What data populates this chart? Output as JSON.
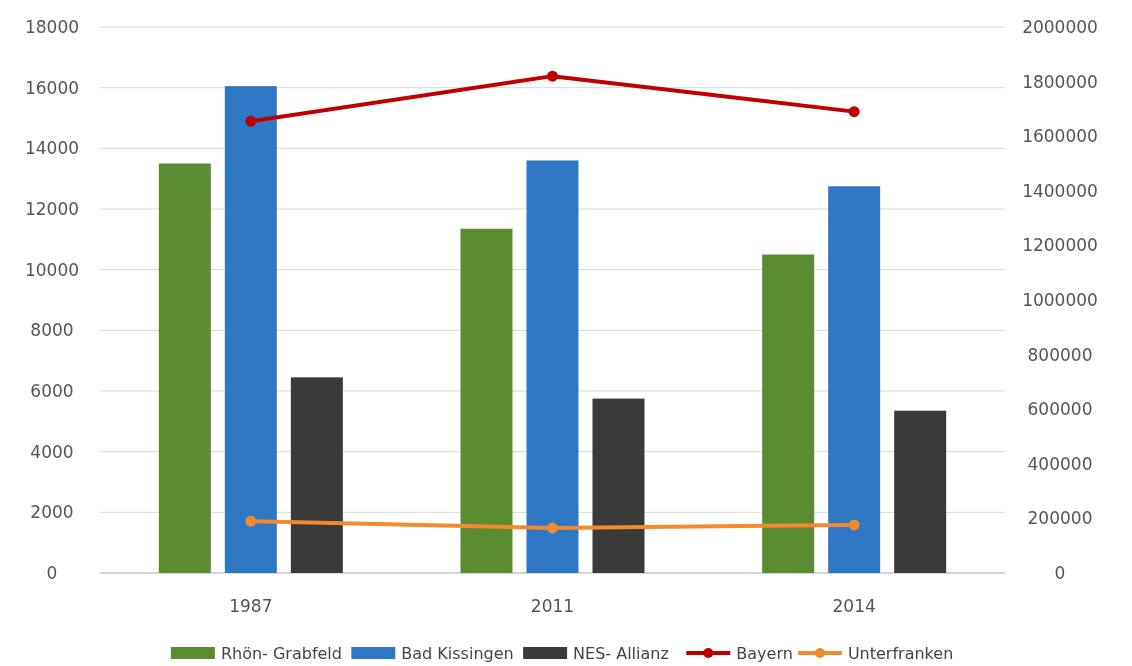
{
  "chart_data": {
    "type": "bar",
    "categories": [
      "1987",
      "2011",
      "2014"
    ],
    "series": [
      {
        "name": "Rhön- Grabfeld",
        "color": "#5b8c32",
        "values": [
          13500,
          11350,
          10500
        ]
      },
      {
        "name": "Bad Kissingen",
        "color": "#2e78c6",
        "values": [
          16050,
          13600,
          12750
        ]
      },
      {
        "name": "NES- Allianz",
        "color": "#3a3a3a",
        "values": [
          6450,
          5750,
          5350
        ]
      },
      {
        "name": "Bayern",
        "type": "line",
        "axis": "y2",
        "color": "#c00000",
        "values": [
          1655000,
          1820000,
          1690000
        ]
      },
      {
        "name": "Unterfranken",
        "type": "line",
        "axis": "y2",
        "color": "#f28a30",
        "values": [
          190000,
          165000,
          176000
        ]
      }
    ],
    "ylim": [
      0,
      18000
    ],
    "yticks": [
      0,
      2000,
      4000,
      6000,
      8000,
      10000,
      12000,
      14000,
      16000,
      18000
    ],
    "y2lim": [
      0,
      2000000
    ],
    "y2ticks": [
      0,
      200000,
      400000,
      600000,
      800000,
      1000000,
      1200000,
      1400000,
      1600000,
      1800000,
      2000000
    ],
    "grid": "y",
    "legend": "bottom",
    "marker": "circle"
  }
}
